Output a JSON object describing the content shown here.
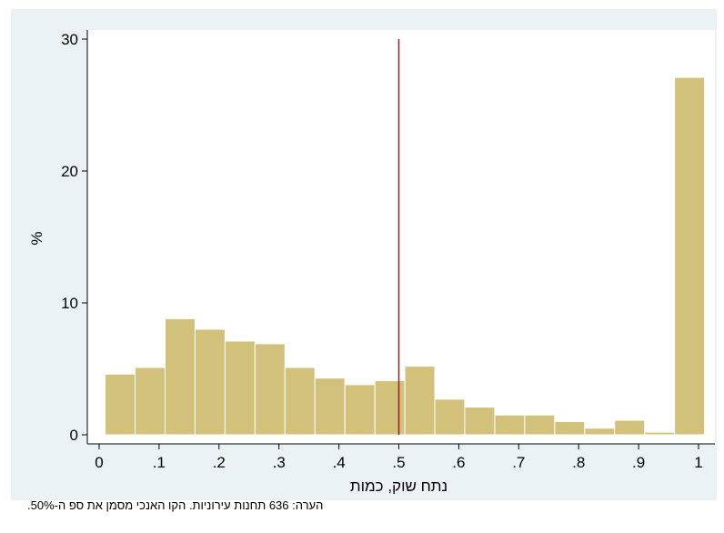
{
  "chart_data": {
    "type": "bar",
    "ylabel": "%",
    "xlabel": "נתח שוק, כמות",
    "xlim": [
      0,
      1
    ],
    "ylim": [
      0,
      30
    ],
    "xticks": [
      {
        "value": 0,
        "label": "0"
      },
      {
        "value": 0.1,
        "label": ".1"
      },
      {
        "value": 0.2,
        "label": ".2"
      },
      {
        "value": 0.3,
        "label": ".3"
      },
      {
        "value": 0.4,
        "label": ".4"
      },
      {
        "value": 0.5,
        "label": ".5"
      },
      {
        "value": 0.6,
        "label": ".6"
      },
      {
        "value": 0.7,
        "label": ".7"
      },
      {
        "value": 0.8,
        "label": ".8"
      },
      {
        "value": 0.9,
        "label": ".9"
      },
      {
        "value": 1,
        "label": "1"
      }
    ],
    "yticks": [
      {
        "value": 0,
        "label": "0"
      },
      {
        "value": 10,
        "label": "10"
      },
      {
        "value": 20,
        "label": "20"
      },
      {
        "value": 30,
        "label": "30"
      }
    ],
    "bin_width": 0.05,
    "bins": [
      {
        "start": 0.01,
        "value": 4.6
      },
      {
        "start": 0.06,
        "value": 5.1
      },
      {
        "start": 0.11,
        "value": 8.8
      },
      {
        "start": 0.16,
        "value": 8.0
      },
      {
        "start": 0.21,
        "value": 7.1
      },
      {
        "start": 0.26,
        "value": 6.9
      },
      {
        "start": 0.31,
        "value": 5.1
      },
      {
        "start": 0.36,
        "value": 4.3
      },
      {
        "start": 0.41,
        "value": 3.8
      },
      {
        "start": 0.46,
        "value": 4.1
      },
      {
        "start": 0.51,
        "value": 5.2
      },
      {
        "start": 0.56,
        "value": 2.7
      },
      {
        "start": 0.61,
        "value": 2.1
      },
      {
        "start": 0.66,
        "value": 1.5
      },
      {
        "start": 0.71,
        "value": 1.5
      },
      {
        "start": 0.76,
        "value": 1.0
      },
      {
        "start": 0.81,
        "value": 0.5
      },
      {
        "start": 0.86,
        "value": 1.1
      },
      {
        "start": 0.91,
        "value": 0.2
      },
      {
        "start": 0.96,
        "value": 27.1
      }
    ],
    "reference_line": {
      "x": 0.5,
      "color": "#9b1b1f"
    },
    "bar_color": "#d1c17b",
    "bar_edge_color": "#ffffff",
    "grid": false,
    "note": "הערה: 636 תחנות עירוניות. הקו האנכי מסמן את ספ ה-50%."
  }
}
